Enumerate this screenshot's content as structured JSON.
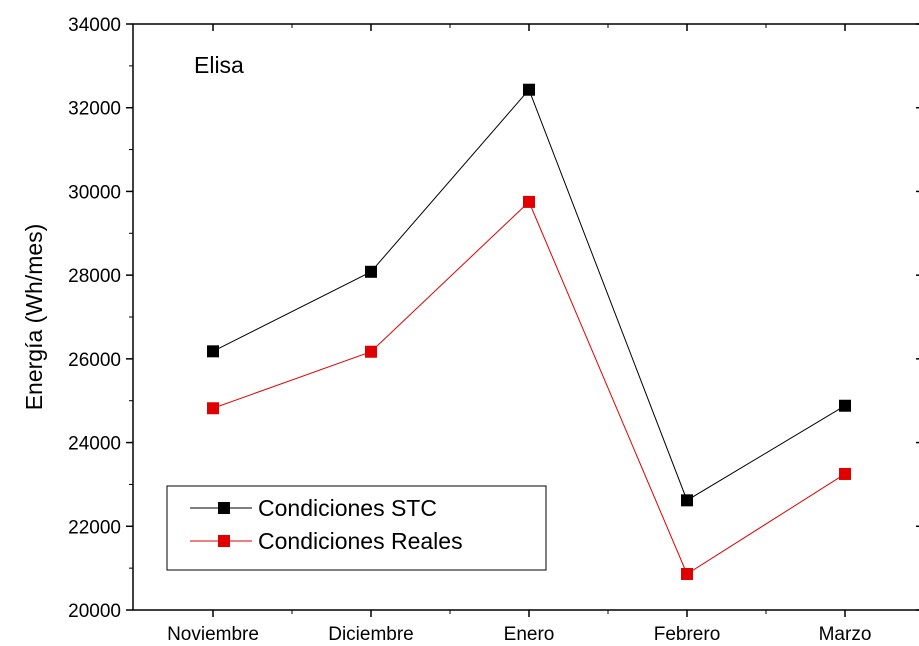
{
  "chart_data": {
    "type": "line",
    "annotation": "Elisa",
    "xlabel": "",
    "ylabel": "Energía (Wh/mes)",
    "categories": [
      "Noviembre",
      "Diciembre",
      "Enero",
      "Febrero",
      "Marzo"
    ],
    "ylim": [
      20000,
      34000
    ],
    "yticks": [
      20000,
      22000,
      24000,
      26000,
      28000,
      30000,
      32000,
      34000
    ],
    "legend_position": "bottom-left",
    "grid": false,
    "series": [
      {
        "name": "Condiciones STC",
        "color": "#000000",
        "marker": "square",
        "values": [
          26180,
          28080,
          32430,
          22620,
          24880
        ]
      },
      {
        "name": "Condiciones Reales",
        "color": "#e00000",
        "marker": "square",
        "values": [
          24820,
          26170,
          29750,
          20860,
          23250
        ]
      }
    ]
  }
}
